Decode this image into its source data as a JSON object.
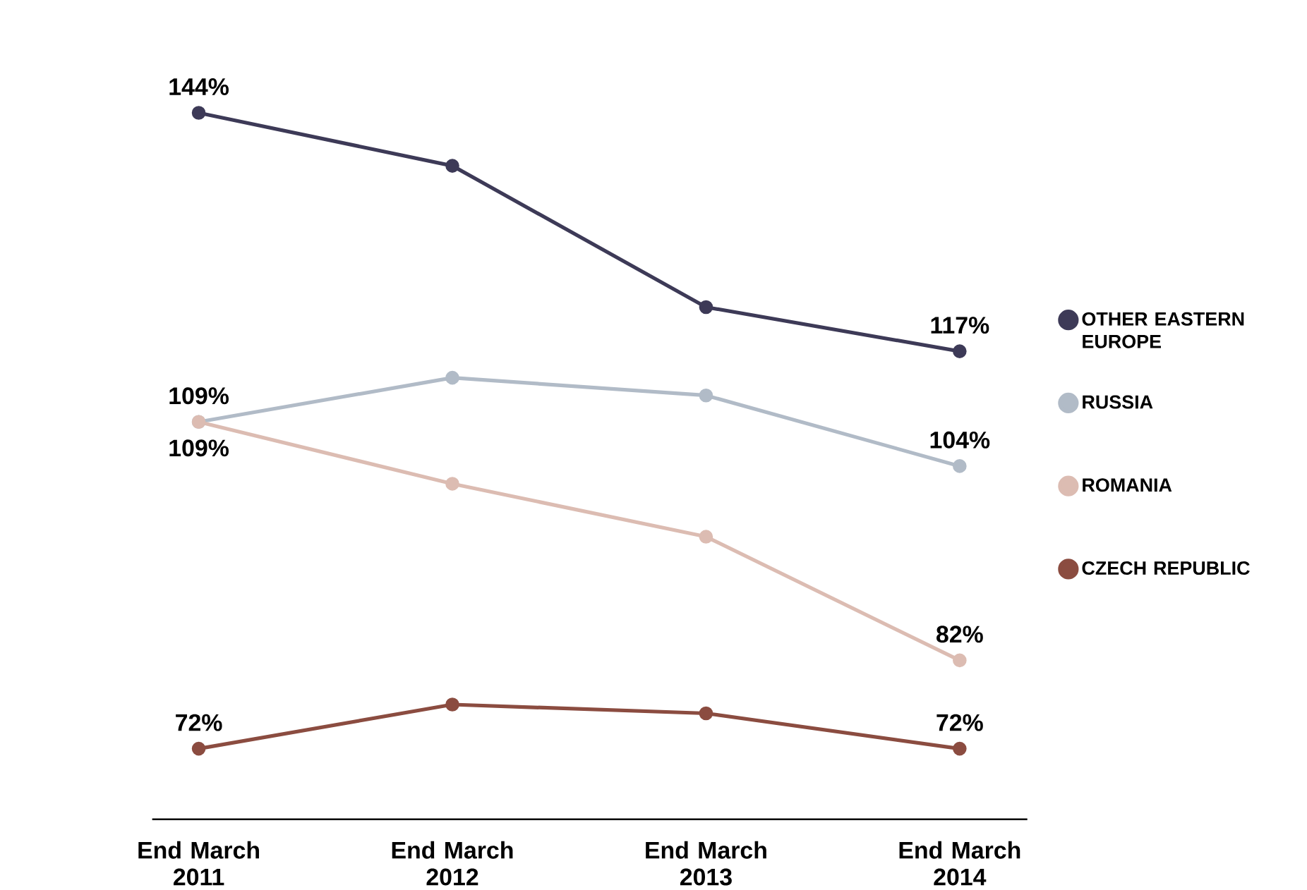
{
  "chart_data": {
    "type": "line",
    "categories": [
      "End March 2011",
      "End March 2012",
      "End March 2013",
      "End March 2014"
    ],
    "series": [
      {
        "name": "OTHER EASTERN EUROPE",
        "color": "#3d3a57",
        "values": [
          144,
          138,
          122,
          117
        ],
        "value_labels": [
          "144%",
          null,
          null,
          "117%"
        ]
      },
      {
        "name": "RUSSIA",
        "color": "#b1bbc7",
        "values": [
          109,
          114,
          112,
          104
        ],
        "value_labels": [
          "109%",
          null,
          null,
          "104%"
        ]
      },
      {
        "name": "ROMANIA",
        "color": "#dcbcb2",
        "values": [
          109,
          102,
          96,
          82
        ],
        "value_labels": [
          "109%",
          null,
          null,
          "82%"
        ]
      },
      {
        "name": "CZECH REPUBLIC",
        "color": "#8b4c40",
        "values": [
          72,
          77,
          76,
          72
        ],
        "value_labels": [
          "72%",
          null,
          null,
          "72%"
        ]
      }
    ],
    "marker": "circle",
    "line_style": "solid",
    "legend": "right"
  }
}
